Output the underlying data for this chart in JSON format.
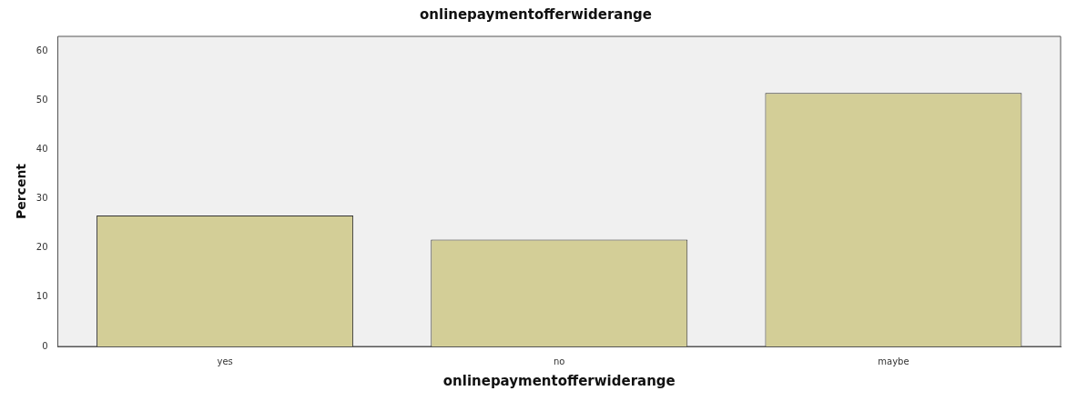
{
  "chart_data": {
    "type": "bar",
    "title": "onlinepaymentofferwiderange",
    "xlabel": "onlinepaymentofferwiderange",
    "ylabel": "Percent",
    "categories": [
      "yes",
      "no",
      "maybe"
    ],
    "values": [
      26.6,
      21.7,
      51.5
    ],
    "color": "#d3ce97",
    "ylim": [
      0,
      63
    ],
    "yticks": [
      0,
      10,
      20,
      30,
      40,
      50,
      60
    ],
    "grid": false,
    "legend": false
  }
}
